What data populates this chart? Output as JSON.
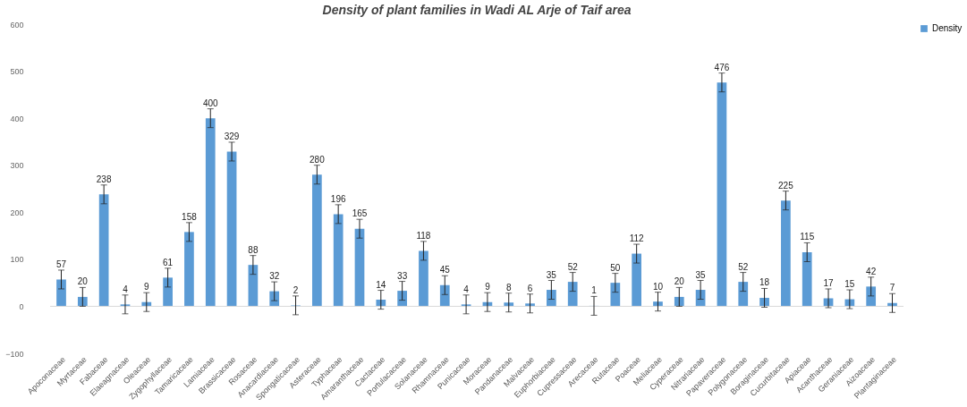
{
  "chart_data": {
    "type": "bar",
    "title": "Density of plant families in Wadi AL  Arje of Taif area",
    "categories": [
      "Apoconaceae",
      "Myrtaceae",
      "Fabaceae",
      "Elaeagnaceae",
      "Oleaceae",
      "Zygophyllaceae",
      "Tamaricaceae",
      "Lamiaceae",
      "Brassicaceae",
      "Rosaceae",
      "Anacardiaceae",
      "Spongaticaceae",
      "Asteraceae",
      "Typhaceae",
      "Amaranthaceae",
      "Cactaceae",
      "Portulacaceae",
      "Solanaceae",
      "Rhamnaceae",
      "Punicaceae",
      "Moraceae",
      "Pandanaceae",
      "Malvaceae",
      "Euphorbiaceae",
      "Cupressaceae",
      "Arecaceae",
      "Rutaceae",
      "Poaceae",
      "Meliaceae",
      "Cyperaceae",
      "Nitrariaceae",
      "Papaveraceae",
      "Polygonaceae",
      "Boraginaceae",
      "Cucurbitaceae",
      "Apiaceae",
      "Acanthaceae",
      "Geraniaceae",
      "Aizoaceae",
      "Plantaginaceae"
    ],
    "series": [
      {
        "name": "Density",
        "color": "#5b9bd5",
        "values": [
          57,
          20,
          238,
          4,
          9,
          61,
          158,
          400,
          329,
          88,
          32,
          2,
          280,
          196,
          165,
          14,
          33,
          118,
          45,
          4,
          9,
          8,
          6,
          35,
          52,
          1,
          50,
          112,
          10,
          20,
          35,
          476,
          52,
          18,
          225,
          115,
          17,
          15,
          42,
          7
        ],
        "errors": [
          20,
          20,
          20,
          20,
          20,
          20,
          20,
          20,
          20,
          20,
          20,
          20,
          20,
          20,
          20,
          20,
          20,
          20,
          20,
          20,
          20,
          20,
          20,
          20,
          20,
          20,
          20,
          20,
          20,
          20,
          20,
          20,
          20,
          20,
          20,
          20,
          20,
          20,
          20,
          20
        ]
      }
    ],
    "ylim": [
      -100,
      600
    ],
    "yticks": [
      -100,
      0,
      100,
      200,
      300,
      400,
      500,
      600
    ],
    "data_labels": true,
    "legend": "right"
  }
}
